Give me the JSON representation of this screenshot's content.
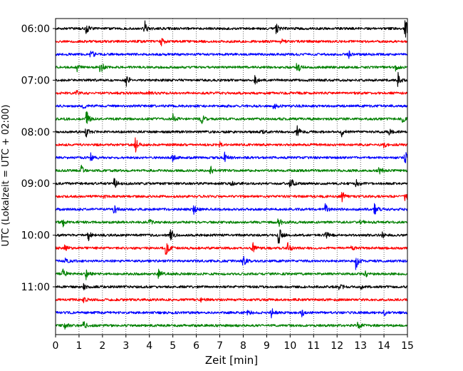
{
  "chart_data": {
    "type": "line",
    "title": "",
    "xlabel": "Zeit  [min]",
    "ylabel": "UTC (Lokalzeit = UTC + 02:00)",
    "xlim": [
      0,
      15
    ],
    "x_ticks": [
      "0",
      "1",
      "2",
      "3",
      "4",
      "5",
      "6",
      "7",
      "8",
      "9",
      "10",
      "11",
      "12",
      "13",
      "14",
      "15"
    ],
    "y_ticks": [
      {
        "label": "06:00",
        "row": 0
      },
      {
        "label": "07:00",
        "row": 4
      },
      {
        "label": "08:00",
        "row": 8
      },
      {
        "label": "09:00",
        "row": 12
      },
      {
        "label": "10:00",
        "row": 16
      },
      {
        "label": "11:00",
        "row": 20
      }
    ],
    "grid": "vertical dotted",
    "trace_minutes": 15,
    "trace_colors": [
      "#000000",
      "#ff0000",
      "#0000ff",
      "#008000"
    ],
    "series": [
      {
        "start": "06:00",
        "color": "#000000",
        "events": [
          {
            "t": 1.3,
            "a": 1.0
          },
          {
            "t": 3.8,
            "a": 1.3
          },
          {
            "t": 9.4,
            "a": 0.8
          },
          {
            "t": 14.9,
            "a": 1.6
          }
        ]
      },
      {
        "start": "06:15",
        "color": "#ff0000",
        "events": [
          {
            "t": 4.5,
            "a": 0.9
          },
          {
            "t": 9.6,
            "a": 0.4
          }
        ]
      },
      {
        "start": "06:30",
        "color": "#0000ff",
        "events": [
          {
            "t": 1.5,
            "a": 0.9
          },
          {
            "t": 12.5,
            "a": 0.5
          }
        ]
      },
      {
        "start": "06:45",
        "color": "#008000",
        "events": [
          {
            "t": 0.9,
            "a": 0.7
          },
          {
            "t": 1.9,
            "a": 1.4
          },
          {
            "t": 10.3,
            "a": 1.1
          },
          {
            "t": 14.5,
            "a": 0.5
          }
        ]
      },
      {
        "start": "07:00",
        "color": "#000000",
        "events": [
          {
            "t": 3.0,
            "a": 1.3
          },
          {
            "t": 8.5,
            "a": 0.7
          },
          {
            "t": 14.6,
            "a": 1.1
          }
        ]
      },
      {
        "start": "07:15",
        "color": "#ff0000",
        "events": [
          {
            "t": 0.9,
            "a": 0.4
          },
          {
            "t": 4.0,
            "a": 0.3
          }
        ]
      },
      {
        "start": "07:30",
        "color": "#0000ff",
        "events": [
          {
            "t": 1.2,
            "a": 0.4
          },
          {
            "t": 9.3,
            "a": 0.6
          }
        ]
      },
      {
        "start": "07:45",
        "color": "#008000",
        "events": [
          {
            "t": 1.3,
            "a": 1.6
          },
          {
            "t": 5.0,
            "a": 0.9
          },
          {
            "t": 6.2,
            "a": 1.0
          },
          {
            "t": 14.8,
            "a": 0.5
          }
        ]
      },
      {
        "start": "08:00",
        "color": "#000000",
        "events": [
          {
            "t": 1.3,
            "a": 0.8
          },
          {
            "t": 8.8,
            "a": 0.4
          },
          {
            "t": 10.3,
            "a": 0.9
          },
          {
            "t": 12.2,
            "a": 0.7
          },
          {
            "t": 14.2,
            "a": 0.5
          }
        ]
      },
      {
        "start": "08:15",
        "color": "#ff0000",
        "events": [
          {
            "t": 3.4,
            "a": 1.2
          },
          {
            "t": 7.0,
            "a": 0.4
          },
          {
            "t": 14.0,
            "a": 0.4
          }
        ]
      },
      {
        "start": "08:30",
        "color": "#0000ff",
        "events": [
          {
            "t": 1.5,
            "a": 0.6
          },
          {
            "t": 5.0,
            "a": 0.6
          },
          {
            "t": 7.2,
            "a": 0.8
          },
          {
            "t": 14.9,
            "a": 1.2
          }
        ]
      },
      {
        "start": "08:45",
        "color": "#008000",
        "events": [
          {
            "t": 1.1,
            "a": 0.8
          },
          {
            "t": 6.6,
            "a": 0.7
          },
          {
            "t": 13.8,
            "a": 0.8
          }
        ]
      },
      {
        "start": "09:00",
        "color": "#000000",
        "events": [
          {
            "t": 2.5,
            "a": 0.8
          },
          {
            "t": 7.5,
            "a": 0.4
          },
          {
            "t": 10.0,
            "a": 1.3
          },
          {
            "t": 12.8,
            "a": 0.6
          }
        ]
      },
      {
        "start": "09:15",
        "color": "#ff0000",
        "events": [
          {
            "t": 2.0,
            "a": 0.4
          },
          {
            "t": 12.2,
            "a": 1.0
          },
          {
            "t": 14.9,
            "a": 1.1
          }
        ]
      },
      {
        "start": "09:30",
        "color": "#0000ff",
        "events": [
          {
            "t": 2.5,
            "a": 0.9
          },
          {
            "t": 5.9,
            "a": 0.7
          },
          {
            "t": 11.5,
            "a": 0.8
          },
          {
            "t": 13.6,
            "a": 1.2
          }
        ]
      },
      {
        "start": "09:45",
        "color": "#008000",
        "events": [
          {
            "t": 0.3,
            "a": 0.7
          },
          {
            "t": 4.0,
            "a": 0.4
          },
          {
            "t": 9.5,
            "a": 1.0
          },
          {
            "t": 13.0,
            "a": 0.5
          }
        ]
      },
      {
        "start": "10:00",
        "color": "#000000",
        "events": [
          {
            "t": 1.4,
            "a": 0.8
          },
          {
            "t": 4.9,
            "a": 1.1
          },
          {
            "t": 9.5,
            "a": 1.6
          },
          {
            "t": 11.5,
            "a": 0.9
          },
          {
            "t": 13.9,
            "a": 0.6
          }
        ]
      },
      {
        "start": "10:15",
        "color": "#ff0000",
        "events": [
          {
            "t": 0.4,
            "a": 0.5
          },
          {
            "t": 4.7,
            "a": 1.3
          },
          {
            "t": 8.4,
            "a": 1.0
          },
          {
            "t": 9.9,
            "a": 0.8
          },
          {
            "t": 12.6,
            "a": 0.4
          }
        ]
      },
      {
        "start": "10:30",
        "color": "#0000ff",
        "events": [
          {
            "t": 0.4,
            "a": 0.5
          },
          {
            "t": 8.0,
            "a": 1.0
          },
          {
            "t": 12.8,
            "a": 1.5
          }
        ]
      },
      {
        "start": "10:45",
        "color": "#008000",
        "events": [
          {
            "t": 0.3,
            "a": 1.2
          },
          {
            "t": 1.3,
            "a": 0.8
          },
          {
            "t": 4.4,
            "a": 1.0
          },
          {
            "t": 13.2,
            "a": 0.6
          }
        ]
      },
      {
        "start": "11:00",
        "color": "#000000",
        "events": [
          {
            "t": 1.2,
            "a": 0.5
          },
          {
            "t": 12.1,
            "a": 0.8
          },
          {
            "t": 13.0,
            "a": 0.4
          }
        ]
      },
      {
        "start": "11:15",
        "color": "#ff0000",
        "events": [
          {
            "t": 1.2,
            "a": 0.5
          },
          {
            "t": 6.2,
            "a": 0.3
          }
        ]
      },
      {
        "start": "11:30",
        "color": "#0000ff",
        "events": [
          {
            "t": 8.2,
            "a": 0.6
          },
          {
            "t": 9.2,
            "a": 0.8
          },
          {
            "t": 10.5,
            "a": 0.5
          },
          {
            "t": 14.0,
            "a": 0.5
          }
        ]
      },
      {
        "start": "11:45",
        "color": "#008000",
        "events": [
          {
            "t": 0.4,
            "a": 0.5
          },
          {
            "t": 1.2,
            "a": 0.8
          },
          {
            "t": 12.9,
            "a": 0.8
          }
        ]
      }
    ]
  }
}
